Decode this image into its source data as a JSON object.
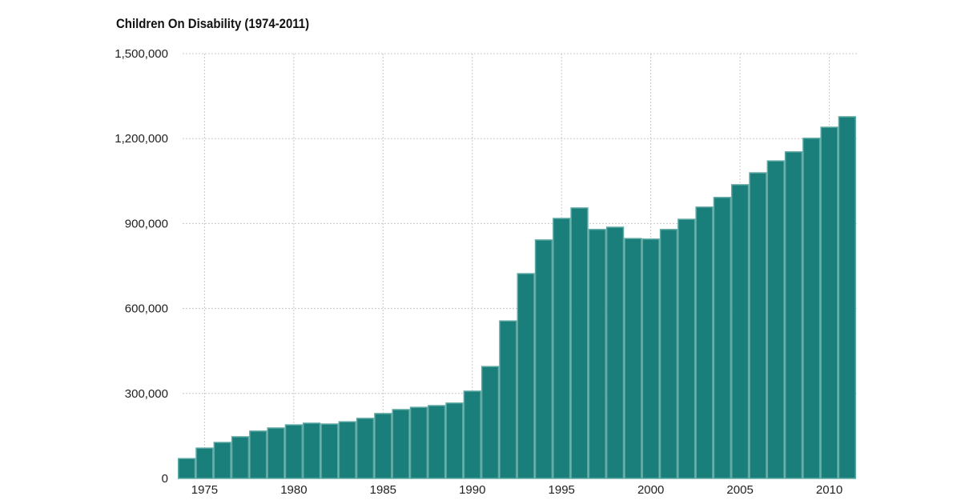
{
  "chart_data": {
    "type": "bar",
    "title": "Children On Disability (1974-2011)",
    "xlabel": "",
    "ylabel": "",
    "ylim": [
      0,
      1500000
    ],
    "yticks": [
      0,
      300000,
      600000,
      900000,
      1200000,
      1500000
    ],
    "ytick_labels": [
      "0",
      "300,000",
      "600,000",
      "900,000",
      "1,200,000",
      "1,500,000"
    ],
    "xtick_labels": [
      "1975",
      "1980",
      "1985",
      "1990",
      "1995",
      "2000",
      "2005",
      "2010"
    ],
    "grid": true,
    "categories": [
      1974,
      1975,
      1976,
      1977,
      1978,
      1979,
      1980,
      1981,
      1982,
      1983,
      1984,
      1985,
      1986,
      1987,
      1988,
      1989,
      1990,
      1991,
      1992,
      1993,
      1994,
      1995,
      1996,
      1997,
      1998,
      1999,
      2000,
      2001,
      2002,
      2003,
      2004,
      2005,
      2006,
      2007,
      2008,
      2009,
      2010,
      2011
    ],
    "values": [
      70000,
      107000,
      127000,
      147000,
      167000,
      178000,
      189000,
      195000,
      192000,
      200000,
      212000,
      229000,
      243000,
      251000,
      257000,
      266000,
      308000,
      395000,
      556000,
      723000,
      842000,
      918000,
      955000,
      879000,
      887000,
      847000,
      845000,
      879000,
      915000,
      958000,
      992000,
      1037000,
      1079000,
      1121000,
      1153000,
      1201000,
      1240000,
      1277000
    ],
    "colors": {
      "bar": "#1a7e7a",
      "bar_edge": "#5fa9a4",
      "grid": "#c8c8c8"
    }
  }
}
